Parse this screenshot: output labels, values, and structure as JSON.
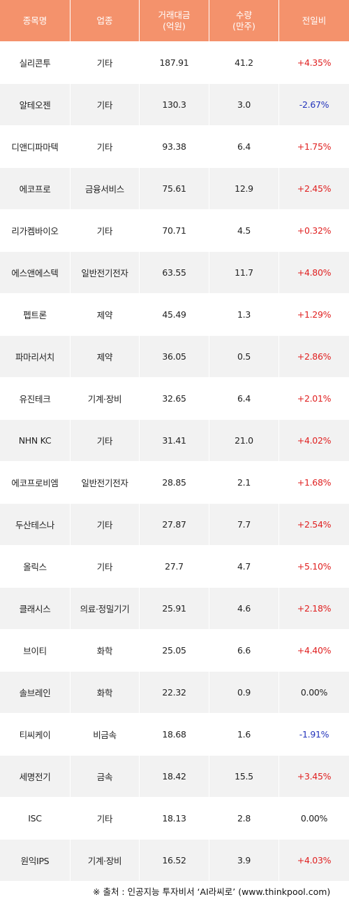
{
  "header": {
    "name": "종목명",
    "sector": "업종",
    "amount_l1": "거래대금",
    "amount_l2": "(억원)",
    "volume_l1": "수량",
    "volume_l2": "(만주)",
    "change": "전일비"
  },
  "colors": {
    "header_bg": "#f4926c",
    "up": "#e02020",
    "down": "#2233bb",
    "row_alt": "#f2f2f2"
  },
  "rows": [
    {
      "name": "실리콘투",
      "sector": "기타",
      "amount": "187.91",
      "volume": "41.2",
      "change": "+4.35%",
      "dir": "up"
    },
    {
      "name": "알테오젠",
      "sector": "기타",
      "amount": "130.3",
      "volume": "3.0",
      "change": "-2.67%",
      "dir": "down"
    },
    {
      "name": "디앤디파마텍",
      "sector": "기타",
      "amount": "93.38",
      "volume": "6.4",
      "change": "+1.75%",
      "dir": "up"
    },
    {
      "name": "에코프로",
      "sector": "금융서비스",
      "amount": "75.61",
      "volume": "12.9",
      "change": "+2.45%",
      "dir": "up"
    },
    {
      "name": "리가켐바이오",
      "sector": "기타",
      "amount": "70.71",
      "volume": "4.5",
      "change": "+0.32%",
      "dir": "up"
    },
    {
      "name": "에스앤에스텍",
      "sector": "일반전기전자",
      "amount": "63.55",
      "volume": "11.7",
      "change": "+4.80%",
      "dir": "up"
    },
    {
      "name": "펩트론",
      "sector": "제약",
      "amount": "45.49",
      "volume": "1.3",
      "change": "+1.29%",
      "dir": "up"
    },
    {
      "name": "파마리서치",
      "sector": "제약",
      "amount": "36.05",
      "volume": "0.5",
      "change": "+2.86%",
      "dir": "up"
    },
    {
      "name": "유진테크",
      "sector": "기계·장비",
      "amount": "32.65",
      "volume": "6.4",
      "change": "+2.01%",
      "dir": "up"
    },
    {
      "name": "NHN KC",
      "sector": "기타",
      "amount": "31.41",
      "volume": "21.0",
      "change": "+4.02%",
      "dir": "up"
    },
    {
      "name": "에코프로비엠",
      "sector": "일반전기전자",
      "amount": "28.85",
      "volume": "2.1",
      "change": "+1.68%",
      "dir": "up"
    },
    {
      "name": "두산테스나",
      "sector": "기타",
      "amount": "27.87",
      "volume": "7.7",
      "change": "+2.54%",
      "dir": "up"
    },
    {
      "name": "올릭스",
      "sector": "기타",
      "amount": "27.7",
      "volume": "4.7",
      "change": "+5.10%",
      "dir": "up"
    },
    {
      "name": "클래시스",
      "sector": "의료·정밀기기",
      "amount": "25.91",
      "volume": "4.6",
      "change": "+2.18%",
      "dir": "up"
    },
    {
      "name": "브이티",
      "sector": "화학",
      "amount": "25.05",
      "volume": "6.6",
      "change": "+4.40%",
      "dir": "up"
    },
    {
      "name": "솔브레인",
      "sector": "화학",
      "amount": "22.32",
      "volume": "0.9",
      "change": "0.00%",
      "dir": "flat"
    },
    {
      "name": "티씨케이",
      "sector": "비금속",
      "amount": "18.68",
      "volume": "1.6",
      "change": "-1.91%",
      "dir": "down"
    },
    {
      "name": "세명전기",
      "sector": "금속",
      "amount": "18.42",
      "volume": "15.5",
      "change": "+3.45%",
      "dir": "up"
    },
    {
      "name": "ISC",
      "sector": "기타",
      "amount": "18.13",
      "volume": "2.8",
      "change": "0.00%",
      "dir": "flat"
    },
    {
      "name": "원익IPS",
      "sector": "기계·장비",
      "amount": "16.52",
      "volume": "3.9",
      "change": "+4.03%",
      "dir": "up"
    }
  ],
  "footer": "※ 출처 : 인공지능 투자비서 ‘AI라씨로’ (www.thinkpool.com)"
}
